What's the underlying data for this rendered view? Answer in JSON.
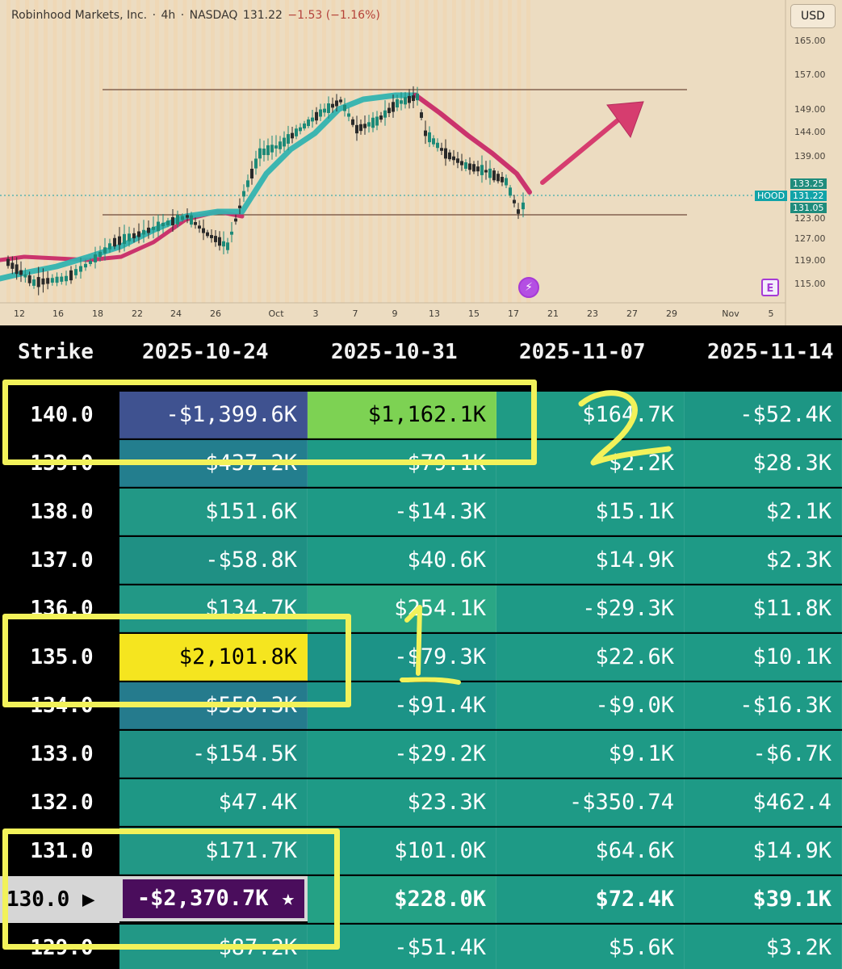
{
  "chart": {
    "title_parts": [
      "Robinhood Markets, Inc.",
      "·",
      "4h",
      "·",
      "NASDAQ",
      "131.22"
    ],
    "title_change": "−1.53 (−1.16%)",
    "currency_button": "USD",
    "price_axis": [
      "165.00",
      "157.00",
      "149.00",
      "144.00",
      "139.00",
      "133.25",
      "131.22",
      "131.05",
      "127.00",
      "123.00",
      "119.00",
      "115.00"
    ],
    "date_axis": [
      "12",
      "16",
      "18",
      "22",
      "24",
      "26",
      "Oct",
      "3",
      "7",
      "9",
      "13",
      "15",
      "17",
      "21",
      "23",
      "27",
      "29",
      "Nov",
      "5"
    ],
    "ticker_tag": "HOOD",
    "price_tags": {
      "upper": "133.25",
      "last": "131.22",
      "lower": "131.05"
    },
    "earnings_marker": "E",
    "colors": {
      "background": "#ecdcc1",
      "bull": "#1d8a78",
      "bear": "#2a2a2a",
      "ema_up": "#33b3b0",
      "ema_down": "#c82a68",
      "arrow": "#d63d6f",
      "tag": "#11a3a8"
    }
  },
  "table": {
    "headers": [
      "Strike",
      "2025-10-24",
      "2025-10-31",
      "2025-11-07",
      "2025-11-14"
    ],
    "rows": [
      {
        "strike": "140.0",
        "values": [
          "-$1,399.6K",
          "$1,162.1K",
          "$164.7K",
          "-$52.4K"
        ],
        "colors": [
          "#3f5290",
          "#7dd253",
          "#1f9b85",
          "#1d9684"
        ]
      },
      {
        "strike": "139.0",
        "values": [
          "$437.2K",
          "$79.1K",
          "$2.2K",
          "$28.3K"
        ],
        "colors": [
          "#237e8e",
          "#1e9a86",
          "#1e9a86",
          "#1f9b85"
        ]
      },
      {
        "strike": "138.0",
        "values": [
          "$151.6K",
          "-$14.3K",
          "$15.1K",
          "$2.1K"
        ],
        "colors": [
          "#229886",
          "#1e9a86",
          "#1e9a86",
          "#1e9a86"
        ]
      },
      {
        "strike": "137.0",
        "values": [
          "-$58.8K",
          "$40.6K",
          "$14.9K",
          "$2.3K"
        ],
        "colors": [
          "#1f9084",
          "#1e9a86",
          "#1e9a86",
          "#1e9a86"
        ]
      },
      {
        "strike": "136.0",
        "values": [
          "$134.7K",
          "$254.1K",
          "-$29.3K",
          "$11.8K"
        ],
        "colors": [
          "#229886",
          "#2aa785",
          "#1e9a86",
          "#1e9a86"
        ]
      },
      {
        "strike": "135.0",
        "values": [
          "$2,101.8K",
          "-$79.3K",
          "$22.6K",
          "$10.1K"
        ],
        "colors": [
          "#f5e51f",
          "#1c9387",
          "#1e9a86",
          "#1e9a86"
        ]
      },
      {
        "strike": "134.0",
        "values": [
          "$550.3K",
          "-$91.4K",
          "-$9.0K",
          "-$16.3K"
        ],
        "colors": [
          "#257b8d",
          "#1c9387",
          "#1e9a86",
          "#1e9a86"
        ]
      },
      {
        "strike": "133.0",
        "values": [
          "-$154.5K",
          "-$29.2K",
          "$9.1K",
          "-$6.7K"
        ],
        "colors": [
          "#1f9084",
          "#1e9a86",
          "#1e9a86",
          "#1e9a86"
        ]
      },
      {
        "strike": "132.0",
        "values": [
          "$47.4K",
          "$23.3K",
          "-$350.74",
          "$462.4"
        ],
        "colors": [
          "#1e9785",
          "#1e9a86",
          "#1e9a86",
          "#1e9a86"
        ]
      },
      {
        "strike": "131.0",
        "values": [
          "$171.7K",
          "$101.0K",
          "$64.6K",
          "$14.9K"
        ],
        "colors": [
          "#229886",
          "#1e9a86",
          "#1e9a86",
          "#1e9a86"
        ]
      },
      {
        "strike": "130.0 ▶",
        "values": [
          "-$2,370.7K ★",
          "$228.0K",
          "$72.4K",
          "$39.1K"
        ],
        "colors": [
          "#4a0d5c",
          "#24a185",
          "#1e9a86",
          "#1e9a86"
        ],
        "current": true
      },
      {
        "strike": "129.0",
        "values": [
          "$87.2K",
          "-$51.4K",
          "$5.6K",
          "$3.2K"
        ],
        "colors": [
          "#229886",
          "#1e9a86",
          "#1e9a86",
          "#1e9a86"
        ]
      }
    ]
  },
  "annotations": {
    "label_1": "1",
    "label_2": "2",
    "color": "#f2f25a"
  }
}
